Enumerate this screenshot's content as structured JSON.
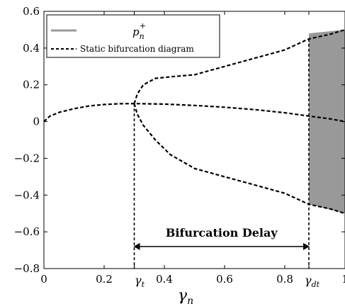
{
  "chart_data": {
    "type": "line",
    "xlabel": "γn",
    "ylabel": "",
    "xlim": [
      0,
      1
    ],
    "ylim": [
      -0.8,
      0.6
    ],
    "grid": false,
    "legend_position": "top-left",
    "x_ticks": [
      {
        "value": 0,
        "label": "0"
      },
      {
        "value": 0.2,
        "label": "0.2"
      },
      {
        "value": 0.4,
        "label": "0.4"
      },
      {
        "value": 0.6,
        "label": "0.6"
      },
      {
        "value": 0.8,
        "label": "0.8"
      },
      {
        "value": 1,
        "label": "1"
      }
    ],
    "x_special_ticks": [
      {
        "value": 0.3,
        "label": "γt"
      },
      {
        "value": 0.88,
        "label": "γdt"
      }
    ],
    "y_ticks": [
      {
        "value": 0.6,
        "label": "0.6"
      },
      {
        "value": 0.4,
        "label": "0.4"
      },
      {
        "value": 0.2,
        "label": "0.2"
      },
      {
        "value": 0,
        "label": "0"
      },
      {
        "value": -0.2,
        "label": "−0.2"
      },
      {
        "value": -0.4,
        "label": "−0.4"
      },
      {
        "value": -0.6,
        "label": "−0.6"
      },
      {
        "value": -0.8,
        "label": "−0.8"
      }
    ],
    "series": [
      {
        "name": "p_n^+",
        "kind": "band",
        "color": "#999999",
        "x_range": [
          0.88,
          1.0
        ],
        "upper": [
          [
            0.88,
            0.48
          ],
          [
            1.0,
            0.5
          ]
        ],
        "lower": [
          [
            0.88,
            -0.45
          ],
          [
            1.0,
            -0.5
          ]
        ]
      },
      {
        "name": "Static bifurcation diagram",
        "kind": "dashed",
        "color": "#000000",
        "branches": [
          {
            "id": "middle",
            "points": [
              [
                0,
                0
              ],
              [
                0.02,
                0.03
              ],
              [
                0.05,
                0.05
              ],
              [
                0.1,
                0.07
              ],
              [
                0.15,
                0.085
              ],
              [
                0.2,
                0.093
              ],
              [
                0.25,
                0.097
              ],
              [
                0.3,
                0.098
              ],
              [
                0.4,
                0.095
              ],
              [
                0.5,
                0.088
              ],
              [
                0.6,
                0.078
              ],
              [
                0.7,
                0.065
              ],
              [
                0.8,
                0.048
              ],
              [
                0.88,
                0.03
              ],
              [
                0.95,
                0.015
              ],
              [
                1.0,
                0.0
              ]
            ]
          },
          {
            "id": "upper",
            "points": [
              [
                0.3,
                0.098
              ],
              [
                0.31,
                0.15
              ],
              [
                0.33,
                0.2
              ],
              [
                0.37,
                0.235
              ],
              [
                0.43,
                0.245
              ],
              [
                0.5,
                0.255
              ],
              [
                0.6,
                0.3
              ],
              [
                0.7,
                0.345
              ],
              [
                0.8,
                0.39
              ],
              [
                0.88,
                0.45
              ],
              [
                0.95,
                0.475
              ],
              [
                1.0,
                0.5
              ]
            ]
          },
          {
            "id": "lower",
            "points": [
              [
                0.3,
                0.098
              ],
              [
                0.31,
                0.04
              ],
              [
                0.33,
                -0.02
              ],
              [
                0.37,
                -0.1
              ],
              [
                0.42,
                -0.18
              ],
              [
                0.5,
                -0.255
              ],
              [
                0.6,
                -0.3
              ],
              [
                0.7,
                -0.345
              ],
              [
                0.8,
                -0.39
              ],
              [
                0.88,
                -0.45
              ],
              [
                0.95,
                -0.475
              ],
              [
                1.0,
                -0.5
              ]
            ]
          }
        ]
      }
    ],
    "annotations": [
      {
        "type": "arrow",
        "text": "Bifurcation Delay",
        "x_from": 0.3,
        "x_to": 0.88,
        "y": -0.68
      }
    ],
    "guides": [
      {
        "x": 0.3,
        "y_from": 0.098,
        "y_to": -0.8
      },
      {
        "x": 0.88,
        "y_from": 0.45,
        "y_to": -0.8
      }
    ]
  },
  "legend": {
    "entries": [
      {
        "label_main": "p",
        "label_sub": "n",
        "label_sup": "+",
        "style": "band"
      },
      {
        "label": "Static bifurcation diagram",
        "style": "dashed"
      }
    ]
  },
  "annotation": {
    "label": "Bifurcation Delay"
  },
  "axis": {
    "x_label_main": "γ",
    "x_label_sub": "n",
    "gamma_t_main": "γ",
    "gamma_t_sub": "t",
    "gamma_dt_main": "γ",
    "gamma_dt_sub": "dt"
  }
}
